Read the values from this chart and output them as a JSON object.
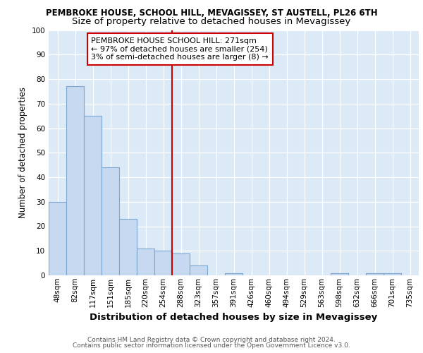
{
  "title1": "PEMBROKE HOUSE, SCHOOL HILL, MEVAGISSEY, ST AUSTELL, PL26 6TH",
  "title2": "Size of property relative to detached houses in Mevagissey",
  "xlabel": "Distribution of detached houses by size in Mevagissey",
  "ylabel": "Number of detached properties",
  "categories": [
    "48sqm",
    "82sqm",
    "117sqm",
    "151sqm",
    "185sqm",
    "220sqm",
    "254sqm",
    "288sqm",
    "323sqm",
    "357sqm",
    "391sqm",
    "426sqm",
    "460sqm",
    "494sqm",
    "529sqm",
    "563sqm",
    "598sqm",
    "632sqm",
    "666sqm",
    "701sqm",
    "735sqm"
  ],
  "values": [
    30,
    77,
    65,
    44,
    23,
    11,
    10,
    9,
    4,
    0,
    1,
    0,
    0,
    0,
    0,
    0,
    1,
    0,
    1,
    1,
    0
  ],
  "bar_color": "#c6d9f0",
  "bar_edge_color": "#7ba7d0",
  "vline_position": 6.5,
  "vline_color": "#cc0000",
  "annotation_line1": "PEMBROKE HOUSE SCHOOL HILL: 271sqm",
  "annotation_line2": "← 97% of detached houses are smaller (254)",
  "annotation_line3": "3% of semi-detached houses are larger (8) →",
  "annotation_box_color": "#ffffff",
  "annotation_border_color": "#cc0000",
  "ylim": [
    0,
    100
  ],
  "yticks": [
    0,
    10,
    20,
    30,
    40,
    50,
    60,
    70,
    80,
    90,
    100
  ],
  "footer1": "Contains HM Land Registry data © Crown copyright and database right 2024.",
  "footer2": "Contains public sector information licensed under the Open Government Licence v3.0.",
  "fig_bg_color": "#ffffff",
  "plot_bg_color": "#dce9f7",
  "grid_color": "#ffffff",
  "title1_fontsize": 8.5,
  "title2_fontsize": 9.5,
  "xlabel_fontsize": 9.5,
  "ylabel_fontsize": 8.5,
  "tick_fontsize": 7.5,
  "footer_fontsize": 6.5,
  "annotation_fontsize": 8.0
}
